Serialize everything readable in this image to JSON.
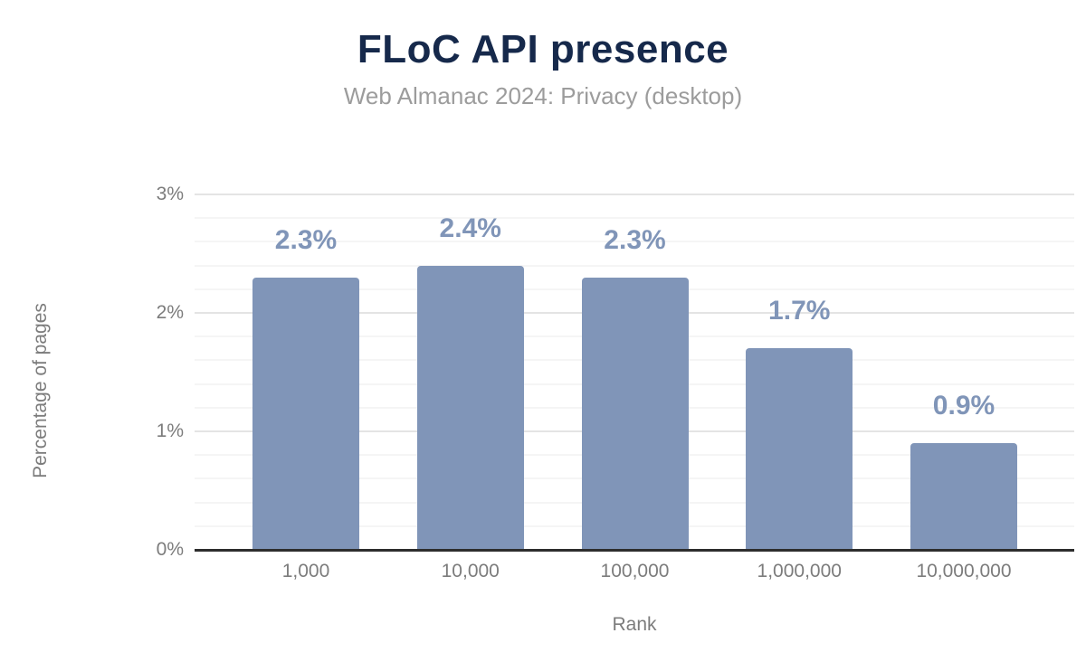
{
  "chart_data": {
    "type": "bar",
    "title": "FLoC API presence",
    "subtitle": "Web Almanac 2024: Privacy (desktop)",
    "xlabel": "Rank",
    "ylabel": "Percentage of pages",
    "categories": [
      "1,000",
      "10,000",
      "100,000",
      "1,000,000",
      "10,000,000"
    ],
    "values": [
      2.3,
      2.4,
      2.3,
      1.7,
      0.9
    ],
    "data_labels": [
      "2.3%",
      "2.4%",
      "2.3%",
      "1.7%",
      "0.9%"
    ],
    "ylim": [
      0,
      3
    ],
    "yticks": [
      {
        "value": 0,
        "label": "0%"
      },
      {
        "value": 1,
        "label": "1%"
      },
      {
        "value": 2,
        "label": "2%"
      },
      {
        "value": 3,
        "label": "3%"
      }
    ],
    "minor_grid_step_pct": 0.2,
    "grid": "horizontal major + faint minor",
    "legend": "none"
  },
  "colors": {
    "bar": "#8095b8",
    "data_label": "#8095b8",
    "title": "#16294b",
    "subtitle": "#9c9c9c",
    "axis_text": "#7c7c7c",
    "major_grid": "#e4e4e4",
    "minor_grid": "#f5f5f5",
    "axis_line": "#2d2d2d",
    "background": "#ffffff"
  }
}
